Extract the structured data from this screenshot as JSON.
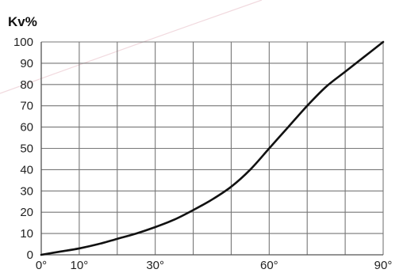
{
  "chart_data": {
    "type": "line",
    "title": "",
    "xlabel": "",
    "ylabel": "Kv%",
    "xlim": [
      0,
      90
    ],
    "ylim": [
      0,
      100
    ],
    "grid": true,
    "x_ticks": [
      0,
      10,
      20,
      30,
      40,
      50,
      60,
      70,
      80,
      90
    ],
    "x_tick_labels": [
      "0°",
      "10°",
      "",
      "30°",
      "",
      "",
      "60°",
      "",
      "",
      "90°"
    ],
    "y_ticks": [
      0,
      10,
      20,
      30,
      40,
      50,
      60,
      70,
      80,
      90,
      100
    ],
    "y_tick_labels": [
      "0",
      "10",
      "20",
      "30",
      "40",
      "50",
      "60",
      "70",
      "80",
      "90",
      "100"
    ],
    "series": [
      {
        "x": [
          0,
          5,
          10,
          15,
          20,
          25,
          30,
          35,
          40,
          45,
          50,
          55,
          60,
          65,
          70,
          75,
          80,
          85,
          90
        ],
        "y": [
          0,
          1.5,
          3,
          5,
          7.5,
          10,
          13,
          16.5,
          21,
          26,
          32,
          40,
          50,
          60,
          70,
          79,
          86,
          93,
          100
        ]
      }
    ],
    "colors": {
      "line": "#111111",
      "grid": "#777777",
      "axis": "#555555",
      "background": "#ffffff"
    }
  }
}
